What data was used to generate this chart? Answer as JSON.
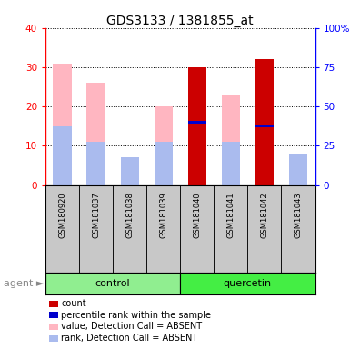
{
  "title": "GDS3133 / 1381855_at",
  "samples": [
    "GSM180920",
    "GSM181037",
    "GSM181038",
    "GSM181039",
    "GSM181040",
    "GSM181041",
    "GSM181042",
    "GSM181043"
  ],
  "ylim_left": [
    0,
    40
  ],
  "ylim_right": [
    0,
    100
  ],
  "left_ticks": [
    0,
    10,
    20,
    30,
    40
  ],
  "right_ticks": [
    0,
    25,
    50,
    75,
    100
  ],
  "right_tick_labels": [
    "0",
    "25",
    "50",
    "75",
    "100%"
  ],
  "bars": {
    "count_red": [
      0,
      0,
      0,
      0,
      30,
      0,
      32,
      0
    ],
    "rank_blue": [
      0,
      0,
      0,
      0,
      16,
      0,
      15,
      0
    ],
    "value_pink": [
      31,
      26,
      7,
      20,
      0,
      23,
      0,
      8
    ],
    "rank_lightblue": [
      15,
      11,
      7,
      11,
      0,
      11,
      0,
      8
    ]
  },
  "colors": {
    "count_red": "#CC0000",
    "rank_blue": "#0000CC",
    "value_pink": "#FFB6C1",
    "rank_lightblue": "#AABBEE",
    "sample_bg": "#C8C8C8",
    "control_bg": "#90EE90",
    "quercetin_bg": "#44EE44"
  },
  "legend_items": [
    {
      "label": "count",
      "color": "#CC0000"
    },
    {
      "label": "percentile rank within the sample",
      "color": "#0000CC"
    },
    {
      "label": "value, Detection Call = ABSENT",
      "color": "#FFB6C1"
    },
    {
      "label": "rank, Detection Call = ABSENT",
      "color": "#AABBEE"
    }
  ]
}
